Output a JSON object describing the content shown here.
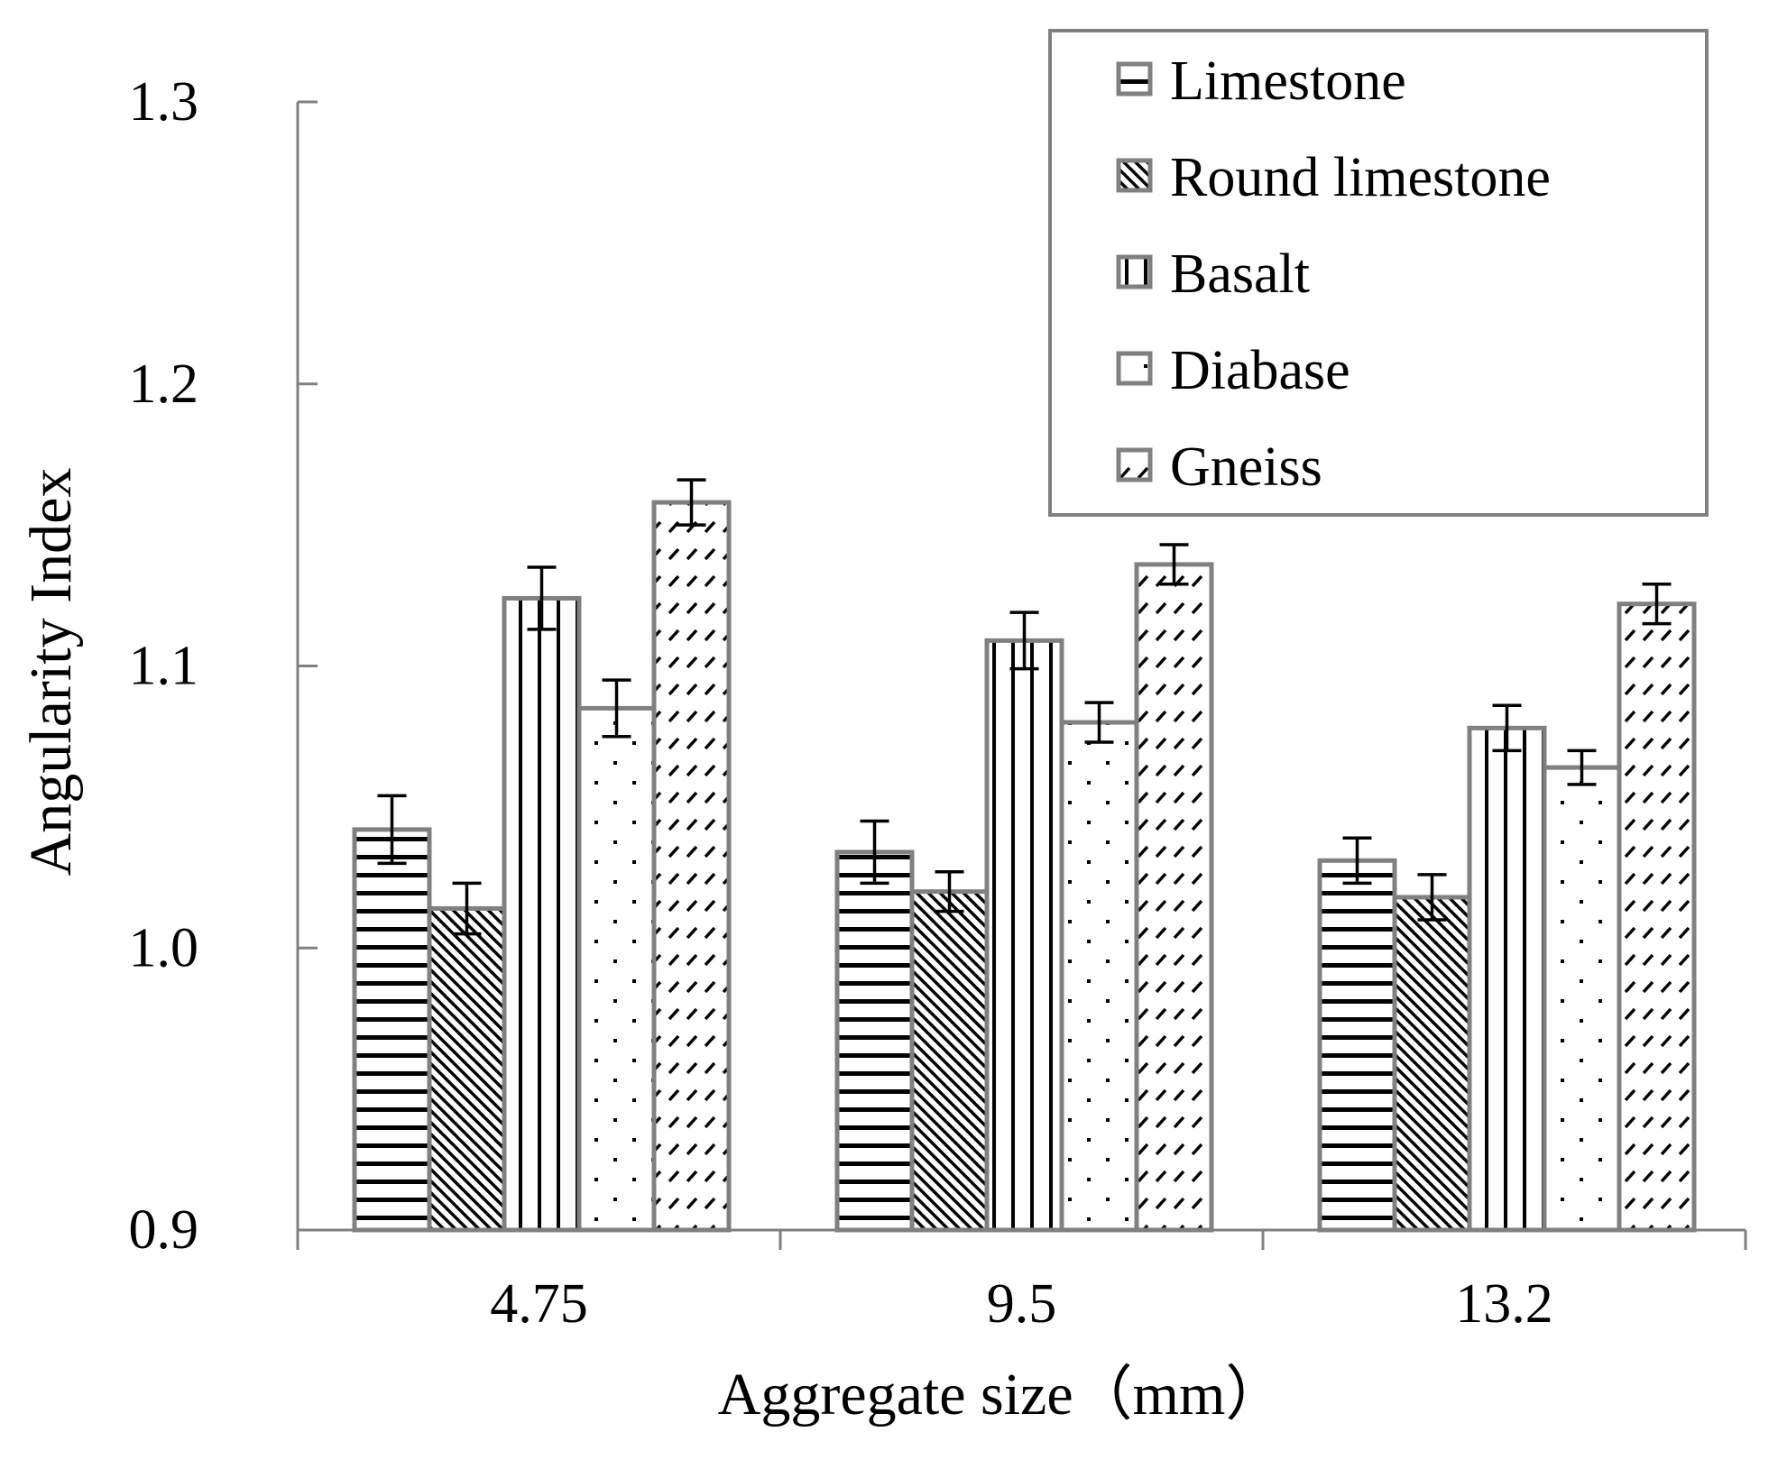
{
  "chart_data": {
    "type": "bar",
    "xlabel": "Aggregate size（mm）",
    "ylabel": "Angularity Index",
    "categories": [
      "4.75",
      "9.5",
      "13.2"
    ],
    "ylim": [
      0.9,
      1.3
    ],
    "yticks": [
      "0.9",
      "1.0",
      "1.1",
      "1.2",
      "1.3"
    ],
    "legend_position": "top-right",
    "grid": false,
    "series": [
      {
        "name": "Limestone",
        "pattern": "horizontal-lines",
        "values": [
          1.042,
          1.034,
          1.031
        ],
        "errors": [
          0.012,
          0.011,
          0.008
        ]
      },
      {
        "name": "Round limestone",
        "pattern": "diagonal-lines",
        "values": [
          1.014,
          1.02,
          1.018
        ],
        "errors": [
          0.009,
          0.007,
          0.008
        ]
      },
      {
        "name": "Basalt",
        "pattern": "vertical-lines",
        "values": [
          1.124,
          1.109,
          1.078
        ],
        "errors": [
          0.011,
          0.01,
          0.008
        ]
      },
      {
        "name": "Diabase",
        "pattern": "sparse-dots",
        "values": [
          1.085,
          1.08,
          1.064
        ],
        "errors": [
          0.01,
          0.007,
          0.006
        ]
      },
      {
        "name": "Gneiss",
        "pattern": "dashed-diagonal",
        "values": [
          1.158,
          1.136,
          1.122
        ],
        "errors": [
          0.008,
          0.007,
          0.007
        ]
      }
    ],
    "colors": {
      "bar_border": "#808080",
      "axis": "#808080",
      "ink": "#000000",
      "background": "#ffffff"
    }
  }
}
